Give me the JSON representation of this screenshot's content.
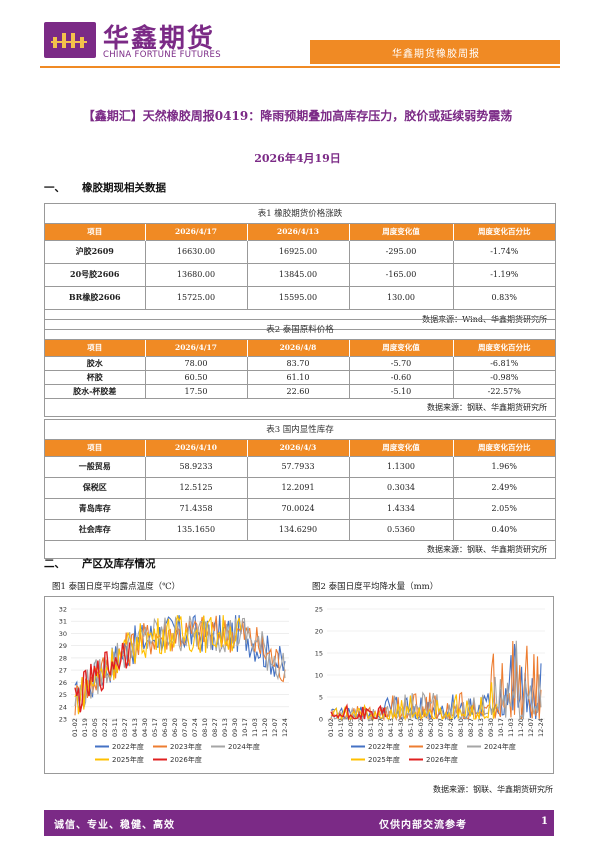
{
  "header": {
    "logo_cn": "华鑫期货",
    "logo_en": "CHINA FORTUNE FUTURES",
    "report_name": "华鑫期货橡胶周报",
    "brand_purple": "#7b2a86",
    "brand_orange": "#f08a24"
  },
  "title": "【鑫期汇】天然橡胶周报0419：降雨预期叠加高库存压力，胶价或延续弱势震荡",
  "date": "2026年4月19日",
  "sections": {
    "s1": {
      "num": "一、",
      "label": "橡胶期现相关数据"
    },
    "s2": {
      "num": "二、",
      "label": "产区及库存情况"
    }
  },
  "table1": {
    "caption": "表1 橡胶期货价格涨跌",
    "headers": [
      "项目",
      "2026/4/17",
      "2026/4/13",
      "周度变化值",
      "周度变化百分比"
    ],
    "rows": [
      [
        "沪胶2609",
        "16630.00",
        "16925.00",
        "-295.00",
        "-1.74%"
      ],
      [
        "20号胶2606",
        "13680.00",
        "13845.00",
        "-165.00",
        "-1.19%"
      ],
      [
        "BR橡胶2606",
        "15725.00",
        "15595.00",
        "130.00",
        "0.83%"
      ]
    ],
    "source": "数据来源：Wind、华鑫期货研究所"
  },
  "table2": {
    "caption": "表2 泰国原料价格",
    "headers": [
      "项目",
      "2026/4/17",
      "2026/4/8",
      "周度变化值",
      "周度变化百分比"
    ],
    "rows": [
      [
        "胶水",
        "78.00",
        "83.70",
        "-5.70",
        "-6.81%"
      ],
      [
        "杯胶",
        "60.50",
        "61.10",
        "-0.60",
        "-0.98%"
      ],
      [
        "胶水-杯胶差",
        "17.50",
        "22.60",
        "-5.10",
        "-22.57%"
      ]
    ],
    "source": "数据来源：钢联、华鑫期货研究所"
  },
  "table3": {
    "caption": "表3 国内显性库存",
    "headers": [
      "项目",
      "2026/4/10",
      "2026/4/3",
      "周度变化值",
      "周度变化百分比"
    ],
    "rows": [
      [
        "一般贸易",
        "58.9233",
        "57.7933",
        "1.1300",
        "1.96%"
      ],
      [
        "保税区",
        "12.5125",
        "12.2091",
        "0.3034",
        "2.49%"
      ],
      [
        "青岛库存",
        "71.4358",
        "70.0024",
        "1.4334",
        "2.05%"
      ],
      [
        "社会库存",
        "135.1650",
        "134.6290",
        "0.5360",
        "0.40%"
      ]
    ],
    "source": "数据来源：钢联、华鑫期货研究所"
  },
  "chart_data": [
    {
      "type": "line",
      "title": "图1 泰国日度平均露点温度（℃）",
      "categories": [
        "01-02",
        "01-19",
        "02-05",
        "02-22",
        "03-11",
        "03-27",
        "04-13",
        "04-30",
        "05-17",
        "06-03",
        "06-20",
        "07-07",
        "07-24",
        "08-10",
        "08-27",
        "09-13",
        "09-30",
        "10-17",
        "11-03",
        "11-20",
        "12-07",
        "12-24"
      ],
      "ylim": [
        23,
        32
      ],
      "yticks": [
        23,
        24,
        25,
        26,
        27,
        28,
        29,
        30,
        31,
        32
      ],
      "series": [
        {
          "name": "2022年度",
          "color": "#4472c4"
        },
        {
          "name": "2023年度",
          "color": "#ed7d31"
        },
        {
          "name": "2024年度",
          "color": "#a5a5a5"
        },
        {
          "name": "2025年度",
          "color": "#ffc000"
        },
        {
          "name": "2026年度",
          "color": "#e02020"
        }
      ]
    },
    {
      "type": "line",
      "title": "图2 泰国日度平均降水量（mm）",
      "categories": [
        "01-02",
        "01-19",
        "02-05",
        "02-22",
        "03-11",
        "03-27",
        "04-13",
        "04-30",
        "05-17",
        "06-03",
        "06-20",
        "07-07",
        "07-24",
        "08-10",
        "08-27",
        "09-13",
        "09-30",
        "10-17",
        "11-03",
        "11-20",
        "12-07",
        "12-24"
      ],
      "ylim": [
        0,
        25
      ],
      "yticks": [
        0,
        5,
        10,
        15,
        20,
        25
      ],
      "series": [
        {
          "name": "2022年度",
          "color": "#4472c4"
        },
        {
          "name": "2023年度",
          "color": "#ed7d31"
        },
        {
          "name": "2024年度",
          "color": "#a5a5a5"
        },
        {
          "name": "2025年度",
          "color": "#ffc000"
        },
        {
          "name": "2026年度",
          "color": "#e02020"
        }
      ]
    }
  ],
  "chart_source": "数据来源：钢联、华鑫期货研究所",
  "footer": {
    "left": "诚信、专业、稳健、高效",
    "mid": "仅供内部交流参考",
    "page": "1"
  }
}
